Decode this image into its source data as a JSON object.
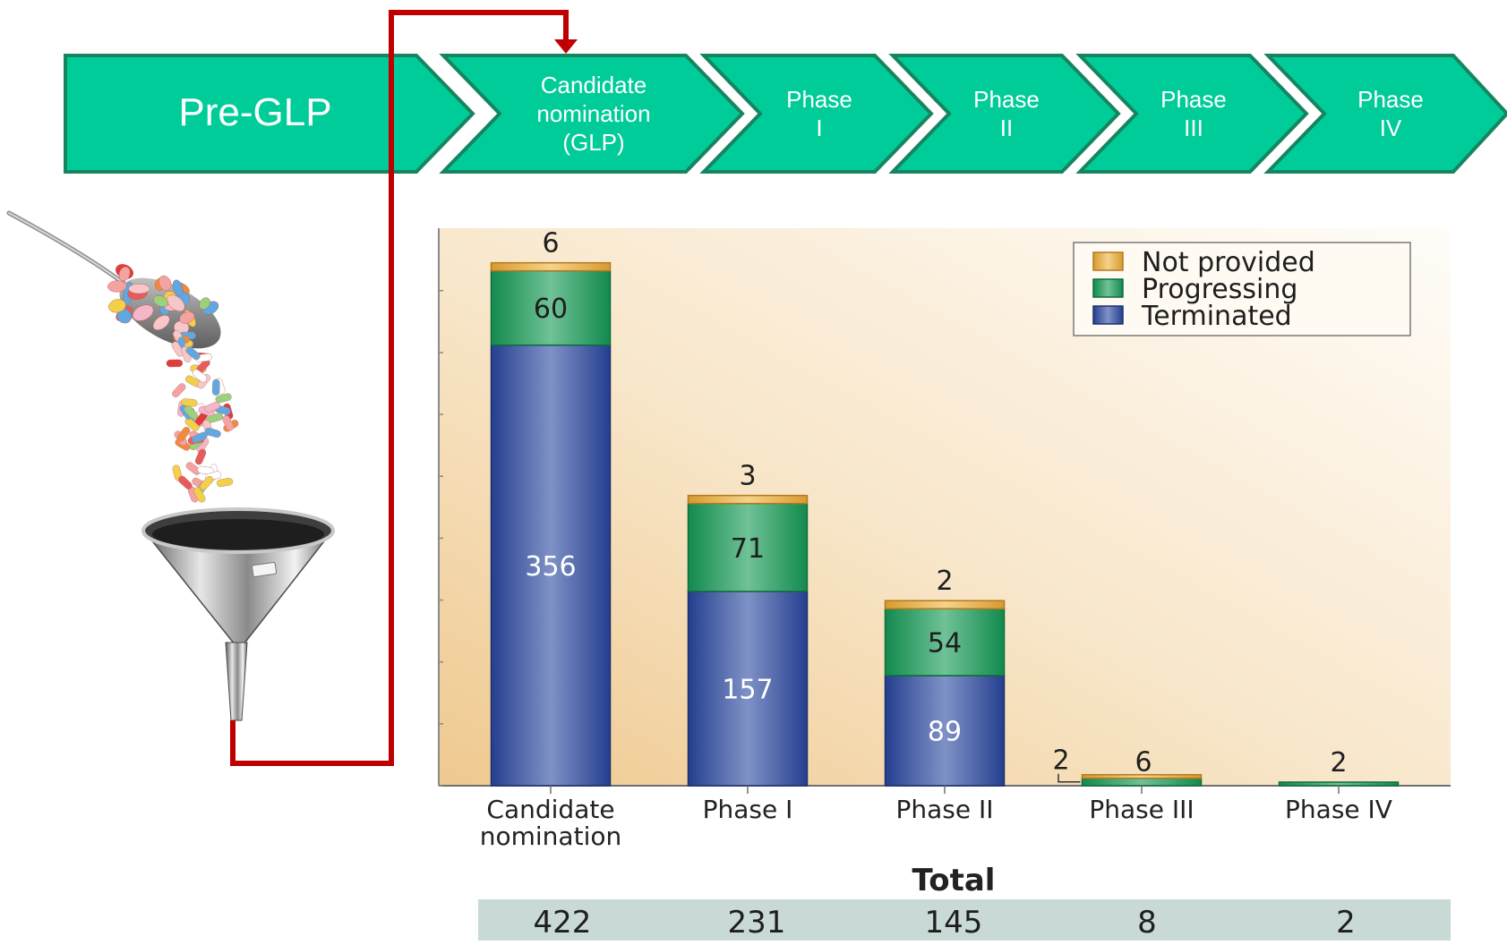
{
  "pipeline": {
    "stages": [
      {
        "lines": [
          "Pre-GLP"
        ]
      },
      {
        "lines": [
          "Candidate",
          "nomination",
          "(GLP)"
        ]
      },
      {
        "lines": [
          "Phase",
          "I"
        ]
      },
      {
        "lines": [
          "Phase",
          "II"
        ]
      },
      {
        "lines": [
          "Phase",
          "III"
        ]
      },
      {
        "lines": [
          "Phase",
          "IV"
        ]
      }
    ],
    "fill_color": "#00cc99",
    "border_color": "#16855f",
    "arrow_color": "#c00000"
  },
  "illustration": {
    "items": [
      "spoon-of-pills",
      "falling-pills",
      "funnel"
    ]
  },
  "chart_data": {
    "type": "bar",
    "stacked": true,
    "categories": [
      [
        "Candidate",
        "nomination"
      ],
      [
        "Phase I"
      ],
      [
        "Phase II"
      ],
      [
        "Phase III"
      ],
      [
        "Phase IV"
      ]
    ],
    "series": [
      {
        "name": "Terminated",
        "values": [
          356,
          157,
          89,
          0,
          0
        ],
        "color": "#3a57a3"
      },
      {
        "name": "Progressing",
        "values": [
          60,
          71,
          54,
          6,
          2
        ],
        "color": "#2e9b62"
      },
      {
        "name": "Not provided",
        "values": [
          6,
          3,
          2,
          2,
          0
        ],
        "color": "#e8ae48"
      }
    ],
    "legend_order": [
      "Not provided",
      "Progressing",
      "Terminated"
    ],
    "legend_position": "top-right",
    "ylim": [
      0,
      450
    ],
    "grid": false,
    "totals": {
      "label": "Total",
      "values": [
        422,
        231,
        145,
        8,
        2
      ]
    }
  }
}
